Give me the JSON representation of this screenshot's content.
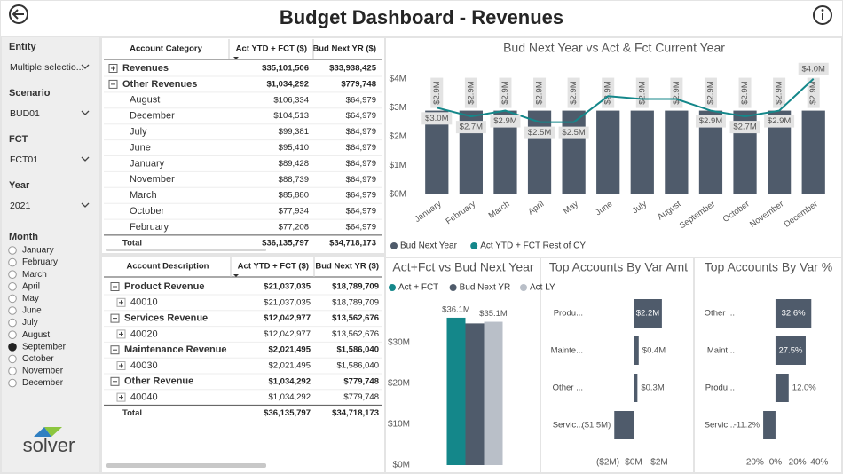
{
  "header": {
    "title": "Budget Dashboard - Revenues"
  },
  "filters": [
    {
      "label": "Entity",
      "value": "Multiple selectio..."
    },
    {
      "label": "Scenario",
      "value": "BUD01"
    },
    {
      "label": "FCT",
      "value": "FCT01"
    },
    {
      "label": "Year",
      "value": "2021"
    }
  ],
  "month_filter": {
    "label": "Month",
    "selected": "September",
    "options": [
      "January",
      "February",
      "March",
      "April",
      "May",
      "June",
      "July",
      "August",
      "September",
      "October",
      "November",
      "December"
    ]
  },
  "logo": {
    "text": "solver"
  },
  "table_category": {
    "headers": [
      "Account Category",
      "Act YTD + FCT ($)",
      "Bud Next YR ($)"
    ],
    "rows": [
      {
        "kind": "group",
        "expanded": false,
        "cells": [
          "Revenues",
          "$35,101,506",
          "$33,938,425"
        ]
      },
      {
        "kind": "group",
        "expanded": true,
        "cells": [
          "Other Revenues",
          "$1,034,292",
          "$779,748"
        ]
      },
      {
        "kind": "item",
        "cells": [
          "August",
          "$106,334",
          "$64,979"
        ]
      },
      {
        "kind": "item",
        "cells": [
          "December",
          "$104,513",
          "$64,979"
        ]
      },
      {
        "kind": "item",
        "cells": [
          "July",
          "$99,381",
          "$64,979"
        ]
      },
      {
        "kind": "item",
        "cells": [
          "June",
          "$95,410",
          "$64,979"
        ]
      },
      {
        "kind": "item",
        "cells": [
          "January",
          "$89,428",
          "$64,979"
        ]
      },
      {
        "kind": "item",
        "cells": [
          "November",
          "$88,739",
          "$64,979"
        ]
      },
      {
        "kind": "item",
        "cells": [
          "March",
          "$85,880",
          "$64,979"
        ]
      },
      {
        "kind": "item",
        "cells": [
          "October",
          "$77,934",
          "$64,979"
        ]
      },
      {
        "kind": "item",
        "cells": [
          "February",
          "$77,208",
          "$64,979"
        ]
      },
      {
        "kind": "total",
        "cells": [
          "Total",
          "$36,135,797",
          "$34,718,173"
        ]
      }
    ]
  },
  "table_account": {
    "headers": [
      "Account Description",
      "Act YTD + FCT ($)",
      "Bud Next YR ($)"
    ],
    "rows": [
      {
        "kind": "group",
        "expanded": true,
        "cells": [
          "Product Revenue",
          "$21,037,035",
          "$18,789,709"
        ]
      },
      {
        "kind": "item",
        "expanded": false,
        "cells": [
          "40010",
          "$21,037,035",
          "$18,789,709"
        ]
      },
      {
        "kind": "group",
        "expanded": true,
        "cells": [
          "Services Revenue",
          "$12,042,977",
          "$13,562,676"
        ]
      },
      {
        "kind": "item",
        "expanded": false,
        "cells": [
          "40020",
          "$12,042,977",
          "$13,562,676"
        ]
      },
      {
        "kind": "group",
        "expanded": true,
        "cells": [
          "Maintenance Revenue",
          "$2,021,495",
          "$1,586,040"
        ]
      },
      {
        "kind": "item",
        "expanded": false,
        "cells": [
          "40030",
          "$2,021,495",
          "$1,586,040"
        ]
      },
      {
        "kind": "group",
        "expanded": true,
        "cells": [
          "Other Revenue",
          "$1,034,292",
          "$779,748"
        ]
      },
      {
        "kind": "item",
        "expanded": false,
        "cells": [
          "40040",
          "$1,034,292",
          "$779,748"
        ]
      },
      {
        "kind": "total",
        "cells": [
          "Total",
          "$36,135,797",
          "$34,718,173"
        ]
      }
    ]
  },
  "chart_data": [
    {
      "type": "bar_line",
      "title": "Bud Next Year vs Act & Fct Current Year",
      "categories": [
        "January",
        "February",
        "March",
        "April",
        "May",
        "June",
        "July",
        "August",
        "September",
        "October",
        "November",
        "December"
      ],
      "series": [
        {
          "name": "Bud Next Year",
          "type": "bar",
          "color": "#4f5b6b",
          "values": [
            2.9,
            2.9,
            2.9,
            2.9,
            2.9,
            2.9,
            2.9,
            2.9,
            2.9,
            2.9,
            2.9,
            2.9
          ],
          "value_labels": [
            "$2.9M",
            "$2.9M",
            "$2.9M",
            "$2.9M",
            "$2.9M",
            "$2.9M",
            "$2.9M",
            "$2.9M",
            "$2.9M",
            "$2.9M",
            "$2.9M",
            "$2.9M"
          ]
        },
        {
          "name": "Act YTD + FCT Rest of CY",
          "type": "line",
          "color": "#14878a",
          "values": [
            3.0,
            2.7,
            2.9,
            2.5,
            2.5,
            3.4,
            3.3,
            3.3,
            2.9,
            2.7,
            2.9,
            4.0
          ],
          "value_labels": [
            "$3.0M",
            "$2.7M",
            "$2.9M",
            "$2.5M",
            "$2.5M",
            null,
            null,
            null,
            "$2.9M",
            "$2.7M",
            "$2.9M",
            "$4.0M"
          ]
        }
      ],
      "ylim": [
        0,
        4.3
      ],
      "yticks": [
        {
          "value": 0,
          "label": "$0M"
        },
        {
          "value": 1,
          "label": "$1M"
        },
        {
          "value": 2,
          "label": "$2M"
        },
        {
          "value": 3,
          "label": "$3M"
        },
        {
          "value": 4,
          "label": "$4M"
        }
      ]
    },
    {
      "type": "grouped_bar",
      "title": "Act+Fct vs Bud Next Year",
      "categories": [
        null
      ],
      "series": [
        {
          "name": "Act + FCT",
          "color": "#14878a",
          "values": [
            36.1
          ],
          "value_labels": [
            "$36.1M"
          ]
        },
        {
          "name": "Bud Next YR",
          "color": "#4f5b6b",
          "values": [
            34.7
          ],
          "value_labels": [
            null
          ]
        },
        {
          "name": "Act LY",
          "color": "#b9bfc8",
          "values": [
            35.1
          ],
          "value_labels": [
            "$35.1M"
          ]
        }
      ],
      "ylim": [
        0,
        40
      ],
      "yticks": [
        {
          "value": 0,
          "label": "$0M"
        },
        {
          "value": 10,
          "label": "$10M"
        },
        {
          "value": 20,
          "label": "$20M"
        },
        {
          "value": 30,
          "label": "$30M"
        }
      ]
    },
    {
      "type": "hbar",
      "title": "Top Accounts By Var Amt",
      "color": "#4f5b6b",
      "categories": [
        "Produ...",
        "Mainte...",
        "Other ...",
        "Servic..."
      ],
      "values": [
        2.2,
        0.4,
        0.3,
        -1.5
      ],
      "value_labels": [
        "$2.2M",
        "$0.4M",
        "$0.3M",
        "($1.5M)"
      ],
      "xlim": [
        -3,
        4
      ],
      "xticks": [
        {
          "value": -2,
          "label": "($2M)"
        },
        {
          "value": 0,
          "label": "$0M"
        },
        {
          "value": 2,
          "label": "$2M"
        }
      ]
    },
    {
      "type": "hbar",
      "title": "Top Accounts By Var %",
      "color": "#4f5b6b",
      "categories": [
        "Other ...",
        "Maint...",
        "Produ...",
        "Servic..."
      ],
      "values": [
        32.6,
        27.5,
        12.0,
        -11.2
      ],
      "value_labels": [
        "32.6%",
        "27.5%",
        "12.0%",
        "-11.2%"
      ],
      "xlim": [
        -25,
        55
      ],
      "xticks": [
        {
          "value": -20,
          "label": "-20%"
        },
        {
          "value": 0,
          "label": "0%"
        },
        {
          "value": 20,
          "label": "20%"
        },
        {
          "value": 40,
          "label": "40%"
        }
      ]
    }
  ]
}
